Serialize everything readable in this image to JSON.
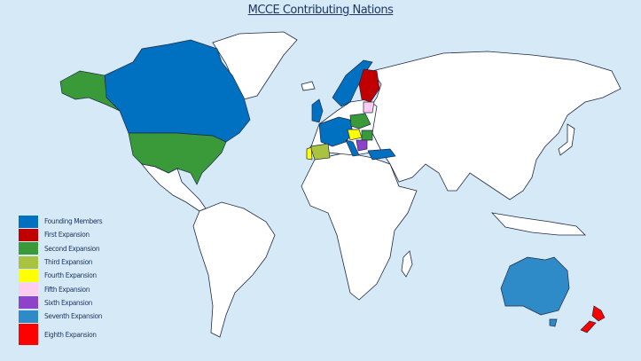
{
  "title": "MCCE Contributing Nations",
  "legend": [
    {
      "label": "Founding Members",
      "color": "#0070c0"
    },
    {
      "label": "First Expansion",
      "color": "#c00000"
    },
    {
      "label": "Second Expansion",
      "color": "#3a9a3a"
    },
    {
      "label": "Third Expansion",
      "color": "#a9c23f"
    },
    {
      "label": "Fourth Expansion",
      "color": "#ffff00"
    },
    {
      "label": "Fifth Expansion",
      "color": "#ffccf0"
    },
    {
      "label": "Sixth Expansion",
      "color": "#8e44c8"
    },
    {
      "label": "Seventh Expansion",
      "color": "#2e8bc8"
    },
    {
      "label": "Eighth Expansion",
      "color": "#ff0000"
    }
  ]
}
